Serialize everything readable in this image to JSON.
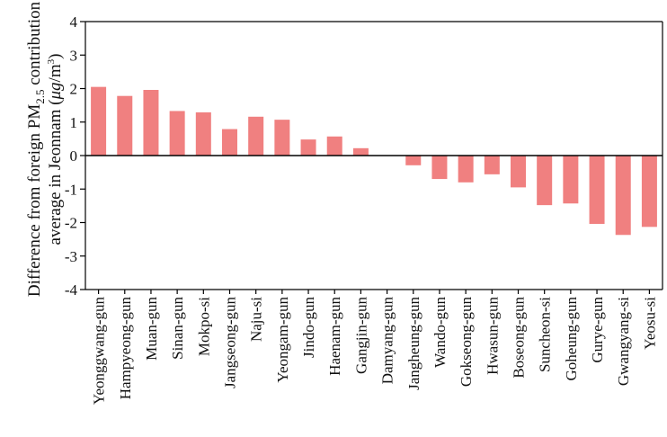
{
  "chart_data": {
    "type": "bar",
    "ylabel_line1": {
      "prefix": "Difference from foreign PM",
      "sub": "2.5",
      "suffix": " contribution"
    },
    "ylabel_line2": {
      "prefix": "average in Jeonnam (",
      "unit_italic": "μg",
      "unit_rest": "/m",
      "unit_sup": "3",
      "suffix": ")"
    },
    "ylim": [
      -4,
      4
    ],
    "yticks": [
      -4,
      -3,
      -2,
      -1,
      0,
      1,
      2,
      3,
      4
    ],
    "bar_color": "#f08080",
    "categories": [
      "Yeonggwang-gun",
      "Hampyeong-gun",
      "Muan-gun",
      "Sinan-gun",
      "Mokpo-si",
      "Jangseong-gun",
      "Naju-si",
      "Yeongam-gun",
      "Jindo-gun",
      "Haenam-gun",
      "Gangjin-gun",
      "Damyang-gun",
      "Jangheung-gun",
      "Wando-gun",
      "Gokseong-gun",
      "Hwasun-gun",
      "Boseong-gun",
      "Suncheon-si",
      "Goheung-gun",
      "Gurye-gun",
      "Gwangyang-si",
      "Yeosu-si"
    ],
    "values": [
      2.05,
      1.78,
      1.96,
      1.33,
      1.29,
      0.79,
      1.16,
      1.07,
      0.48,
      0.57,
      0.22,
      0.0,
      -0.29,
      -0.7,
      -0.8,
      -0.56,
      -0.95,
      -1.48,
      -1.43,
      -2.04,
      -2.37,
      -2.13
    ]
  }
}
